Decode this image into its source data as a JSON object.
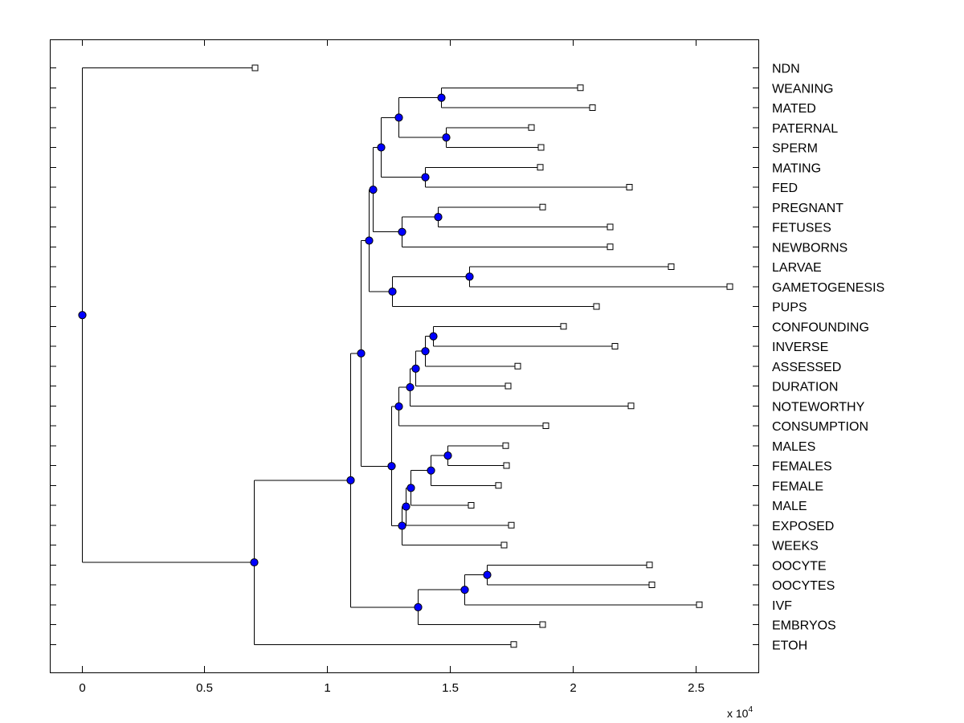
{
  "chart_data": {
    "type": "dendrogram",
    "title": "",
    "xlabel": "",
    "ylabel": "",
    "x_scale_label": "x 10",
    "x_scale_exponent": "4",
    "xlim": [
      -0.13,
      2.76
    ],
    "xticks": [
      0,
      0.5,
      1,
      1.5,
      2,
      2.5
    ],
    "xtick_labels": [
      "0",
      "0.5",
      "1",
      "1.5",
      "2",
      "2.5"
    ],
    "grid": false,
    "colors": {
      "internal_node": "#0000ff",
      "leaf_fill": "#ffffff",
      "line": "#000000"
    },
    "leaves": [
      {
        "id": "l0",
        "label": "NDN",
        "x": 0.705
      },
      {
        "id": "l1",
        "label": "WEANING",
        "x": 2.03
      },
      {
        "id": "l2",
        "label": "MATED",
        "x": 2.08
      },
      {
        "id": "l3",
        "label": "PATERNAL",
        "x": 1.83
      },
      {
        "id": "l4",
        "label": "SPERM",
        "x": 1.87
      },
      {
        "id": "l5",
        "label": "MATING",
        "x": 1.865
      },
      {
        "id": "l6",
        "label": "FED",
        "x": 2.23
      },
      {
        "id": "l7",
        "label": "PREGNANT",
        "x": 1.875
      },
      {
        "id": "l8",
        "label": "FETUSES",
        "x": 2.15
      },
      {
        "id": "l9",
        "label": "NEWBORNS",
        "x": 2.15
      },
      {
        "id": "l10",
        "label": "LARVAE",
        "x": 2.4
      },
      {
        "id": "l11",
        "label": "GAMETOGENESIS",
        "x": 2.64
      },
      {
        "id": "l12",
        "label": "PUPS",
        "x": 2.095
      },
      {
        "id": "l13",
        "label": "CONFOUNDING",
        "x": 1.96
      },
      {
        "id": "l14",
        "label": "INVERSE",
        "x": 2.17
      },
      {
        "id": "l15",
        "label": "ASSESSED",
        "x": 1.775
      },
      {
        "id": "l16",
        "label": "DURATION",
        "x": 1.735
      },
      {
        "id": "l17",
        "label": "NOTEWORTHY",
        "x": 2.235
      },
      {
        "id": "l18",
        "label": "CONSUMPTION",
        "x": 1.89
      },
      {
        "id": "l19",
        "label": "MALES",
        "x": 1.725
      },
      {
        "id": "l20",
        "label": "FEMALES",
        "x": 1.73
      },
      {
        "id": "l21",
        "label": "FEMALE",
        "x": 1.695
      },
      {
        "id": "l22",
        "label": "MALE",
        "x": 1.585
      },
      {
        "id": "l23",
        "label": "EXPOSED",
        "x": 1.75
      },
      {
        "id": "l24",
        "label": "WEEKS",
        "x": 1.72
      },
      {
        "id": "l25",
        "label": "OOCYTE",
        "x": 2.31
      },
      {
        "id": "l26",
        "label": "OOCYTES",
        "x": 2.32
      },
      {
        "id": "l27",
        "label": "IVF",
        "x": 2.515
      },
      {
        "id": "l28",
        "label": "EMBRYOS",
        "x": 1.875
      },
      {
        "id": "l29",
        "label": "ETOH",
        "x": 1.76
      }
    ],
    "nodes": [
      {
        "id": "n1",
        "x": 1.465,
        "children": [
          "l1",
          "l2"
        ]
      },
      {
        "id": "n2",
        "x": 1.485,
        "children": [
          "l3",
          "l4"
        ]
      },
      {
        "id": "n3",
        "x": 1.29,
        "children": [
          "n1",
          "n2"
        ]
      },
      {
        "id": "n4",
        "x": 1.4,
        "children": [
          "l5",
          "l6"
        ]
      },
      {
        "id": "n5",
        "x": 1.22,
        "children": [
          "n3",
          "n4"
        ]
      },
      {
        "id": "n6",
        "x": 1.45,
        "children": [
          "l7",
          "l8"
        ]
      },
      {
        "id": "n7",
        "x": 1.305,
        "children": [
          "n6",
          "l9"
        ]
      },
      {
        "id": "n8",
        "x": 1.185,
        "children": [
          "n5",
          "n7"
        ]
      },
      {
        "id": "n9",
        "x": 1.58,
        "children": [
          "l10",
          "l11"
        ]
      },
      {
        "id": "n10",
        "x": 1.265,
        "children": [
          "n9",
          "l12"
        ]
      },
      {
        "id": "n11",
        "x": 1.17,
        "children": [
          "n8",
          "n10"
        ]
      },
      {
        "id": "n12",
        "x": 1.43,
        "children": [
          "l13",
          "l14"
        ]
      },
      {
        "id": "n13",
        "x": 1.4,
        "children": [
          "n12",
          "l15"
        ]
      },
      {
        "id": "n14",
        "x": 1.36,
        "children": [
          "n13",
          "l16"
        ]
      },
      {
        "id": "n15",
        "x": 1.335,
        "children": [
          "n14",
          "l17"
        ]
      },
      {
        "id": "n16",
        "x": 1.29,
        "children": [
          "n15",
          "l18"
        ]
      },
      {
        "id": "n17",
        "x": 1.49,
        "children": [
          "l19",
          "l20"
        ]
      },
      {
        "id": "n18",
        "x": 1.42,
        "children": [
          "n17",
          "l21"
        ]
      },
      {
        "id": "n19",
        "x": 1.34,
        "children": [
          "n18",
          "l22"
        ]
      },
      {
        "id": "n20",
        "x": 1.32,
        "children": [
          "n19",
          "l23"
        ]
      },
      {
        "id": "n21",
        "x": 1.305,
        "children": [
          "n20",
          "l24"
        ]
      },
      {
        "id": "n22",
        "x": 1.26,
        "children": [
          "n16",
          "n21"
        ]
      },
      {
        "id": "n23",
        "x": 1.135,
        "children": [
          "n11",
          "n22"
        ]
      },
      {
        "id": "n24",
        "x": 1.65,
        "children": [
          "l25",
          "l26"
        ]
      },
      {
        "id": "n25",
        "x": 1.56,
        "children": [
          "n24",
          "l27"
        ]
      },
      {
        "id": "n26",
        "x": 1.37,
        "children": [
          "n25",
          "l28"
        ]
      },
      {
        "id": "n27",
        "x": 1.095,
        "children": [
          "n23",
          "n26"
        ]
      },
      {
        "id": "n28",
        "x": 0.7,
        "children": [
          "n27",
          "l29"
        ]
      },
      {
        "id": "n29",
        "x": 0.0,
        "children": [
          "l0",
          "n28"
        ]
      }
    ]
  }
}
